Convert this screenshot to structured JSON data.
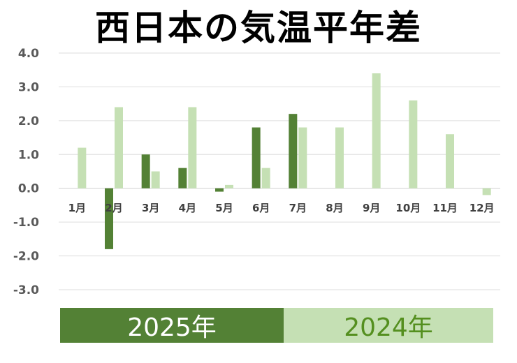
{
  "chart_data": {
    "type": "bar",
    "title": "西日本の気温平年差",
    "categories": [
      "1月",
      "2月",
      "3月",
      "4月",
      "5月",
      "6月",
      "7月",
      "8月",
      "9月",
      "10月",
      "11月",
      "12月"
    ],
    "yticks": [
      "4.0",
      "3.0",
      "2.0",
      "1.0",
      "0.0",
      "-1.0",
      "-2.0",
      "-3.0"
    ],
    "ylim": [
      -3,
      4
    ],
    "grid": true,
    "legend_placement": "bottom",
    "series": [
      {
        "name": "2025年",
        "color": "#538135",
        "values": [
          null,
          -1.8,
          1.0,
          0.6,
          -0.1,
          1.8,
          2.2,
          null,
          null,
          null,
          null,
          null
        ]
      },
      {
        "name": "2024年",
        "color": "#c5e0b4",
        "values": [
          1.2,
          2.4,
          0.5,
          2.4,
          0.1,
          0.6,
          1.8,
          1.8,
          3.4,
          2.6,
          1.6,
          -0.2
        ]
      }
    ]
  }
}
